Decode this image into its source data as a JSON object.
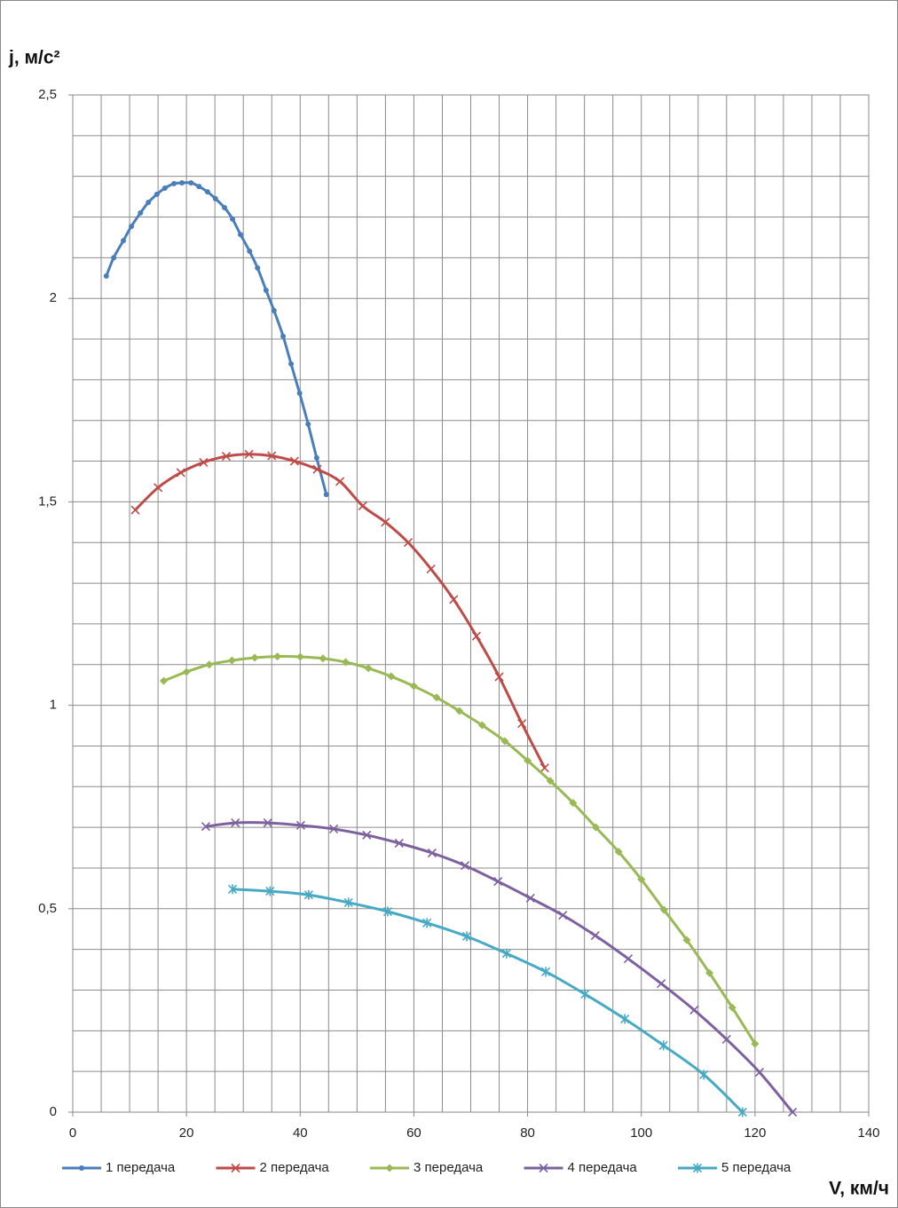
{
  "chart_data": {
    "type": "line",
    "y_label": "j, м/с²",
    "x_label": "V, км/ч",
    "xlim": [
      0,
      140
    ],
    "xticks": [
      0,
      20,
      40,
      60,
      80,
      100,
      120,
      140
    ],
    "ylim": [
      0,
      2.5
    ],
    "yticks": [
      0,
      {
        "value": 0.5,
        "label": "0,5"
      },
      1,
      {
        "value": 1.5,
        "label": "1,5"
      },
      2,
      {
        "value": 2.5,
        "label": "2,5"
      }
    ],
    "grid": {
      "x_step": 5,
      "y_step": 0.1
    },
    "smooth": true,
    "legend": "bottom",
    "series": [
      {
        "name": "1 передача",
        "color": "#4a7ebb",
        "marker": "dot",
        "x": [
          5.9,
          7.2,
          8.9,
          10.3,
          11.9,
          13.3,
          14.8,
          16.2,
          17.8,
          19.2,
          20.8,
          22.2,
          23.7,
          25.1,
          26.7,
          28.1,
          29.5,
          31.1,
          32.5,
          34.0,
          35.4,
          37.0,
          38.4,
          39.9,
          41.4,
          42.9,
          44.6
        ],
        "values": [
          2.055,
          2.1,
          2.142,
          2.177,
          2.21,
          2.236,
          2.256,
          2.271,
          2.282,
          2.284,
          2.284,
          2.275,
          2.262,
          2.245,
          2.223,
          2.195,
          2.157,
          2.116,
          2.075,
          2.02,
          1.97,
          1.907,
          1.839,
          1.767,
          1.691,
          1.608,
          1.518
        ]
      },
      {
        "name": "2 передача",
        "color": "#be4b48",
        "marker": "x",
        "x": [
          11,
          15,
          19,
          23,
          27,
          31,
          35,
          39,
          43,
          47,
          51,
          55,
          59,
          63,
          67,
          71,
          75,
          79,
          83
        ],
        "values": [
          1.48,
          1.535,
          1.572,
          1.597,
          1.612,
          1.617,
          1.613,
          1.6,
          1.58,
          1.55,
          1.49,
          1.45,
          1.4,
          1.335,
          1.26,
          1.17,
          1.07,
          0.955,
          0.846
        ]
      },
      {
        "name": "3 передача",
        "color": "#98b954",
        "marker": "diamond",
        "x": [
          16,
          20,
          24,
          28,
          32,
          36,
          40,
          44,
          48,
          52,
          56,
          60,
          64,
          68,
          72,
          76,
          80,
          84,
          88,
          92,
          96,
          100,
          104,
          108,
          112,
          116,
          120
        ],
        "values": [
          1.06,
          1.082,
          1.1,
          1.11,
          1.117,
          1.12,
          1.119,
          1.115,
          1.106,
          1.091,
          1.071,
          1.047,
          1.019,
          0.986,
          0.951,
          0.912,
          0.864,
          0.814,
          0.76,
          0.7,
          0.64,
          0.572,
          0.497,
          0.423,
          0.342,
          0.257,
          0.168
        ]
      },
      {
        "name": "4 передача",
        "color": "#7d60a0",
        "marker": "x",
        "x": [
          23.4,
          28.6,
          34.3,
          40.1,
          45.9,
          51.7,
          57.4,
          63.2,
          69.0,
          74.8,
          80.5,
          86.2,
          91.9,
          97.7,
          103.5,
          109.3,
          115.0,
          120.8,
          126.6
        ],
        "values": [
          0.702,
          0.711,
          0.711,
          0.705,
          0.696,
          0.681,
          0.661,
          0.637,
          0.606,
          0.567,
          0.526,
          0.484,
          0.434,
          0.377,
          0.316,
          0.251,
          0.179,
          0.098,
          0
        ]
      },
      {
        "name": "5 передача",
        "color": "#46aac5",
        "marker": "asterisk",
        "x": [
          28.1,
          34.7,
          41.5,
          48.5,
          55.4,
          62.3,
          69.3,
          76.3,
          83.2,
          90.1,
          97.1,
          103.9,
          111.0,
          117.8
        ],
        "values": [
          0.548,
          0.543,
          0.534,
          0.515,
          0.493,
          0.465,
          0.432,
          0.39,
          0.345,
          0.29,
          0.229,
          0.164,
          0.092,
          0
        ]
      }
    ]
  }
}
